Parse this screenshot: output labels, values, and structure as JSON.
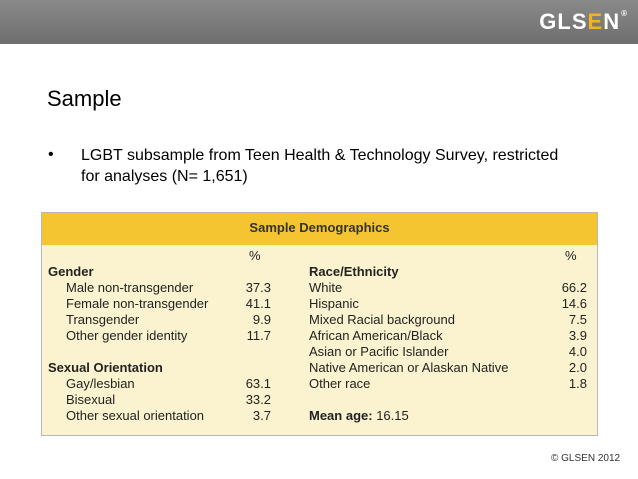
{
  "brand": {
    "logo_left": "GLS",
    "logo_accent": "E",
    "logo_right": "N",
    "logo_mark": "®"
  },
  "slide": {
    "title": "Sample",
    "bullet_symbol": "•",
    "bullet_text": "LGBT subsample from Teen Health & Technology Survey, restricted for analyses (N= 1,651)"
  },
  "table": {
    "title": "Sample Demographics",
    "pct_header_left": "%",
    "pct_header_right": "%",
    "gender": {
      "heading": "Gender",
      "rows": [
        {
          "label": "Male non-transgender",
          "value": "37.3"
        },
        {
          "label": "Female non-transgender",
          "value": "41.1"
        },
        {
          "label": "Transgender",
          "value": "9.9"
        },
        {
          "label": "Other gender identity",
          "value": "11.7"
        }
      ]
    },
    "sexual_orientation": {
      "heading": "Sexual Orientation",
      "rows": [
        {
          "label": "Gay/lesbian",
          "value": "63.1"
        },
        {
          "label": "Bisexual",
          "value": "33.2"
        },
        {
          "label": "Other sexual orientation",
          "value": "3.7"
        }
      ]
    },
    "race": {
      "heading": "Race/Ethnicity",
      "rows": [
        {
          "label": "White",
          "value": "66.2"
        },
        {
          "label": "Hispanic",
          "value": "14.6"
        },
        {
          "label": "Mixed Racial background",
          "value": "7.5"
        },
        {
          "label": "African American/Black",
          "value": "3.9"
        },
        {
          "label": "Asian or Pacific Islander",
          "value": "4.0"
        },
        {
          "label": "Native American or Alaskan Native",
          "value": "2.0"
        },
        {
          "label": "Other race",
          "value": "1.8"
        }
      ]
    },
    "mean_age": {
      "label": "Mean age:",
      "value": "16.15"
    }
  },
  "footer": {
    "copyright": "© GLSEN 2012"
  }
}
